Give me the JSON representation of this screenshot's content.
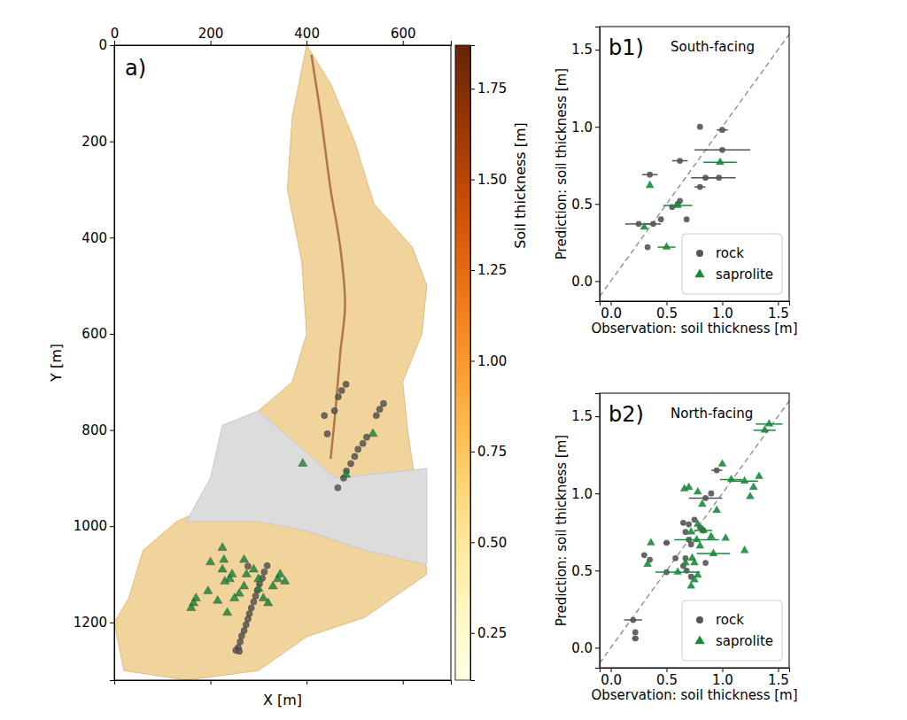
{
  "chart_data": [
    {
      "type": "scatter",
      "panel": "a)",
      "x_label": "X [m]",
      "y_label": "Y [m]",
      "xlim": [
        0,
        700
      ],
      "ylim": [
        0,
        1320
      ],
      "xticks": [
        0,
        200,
        400,
        600
      ],
      "yticks": [
        0,
        200,
        400,
        600,
        800,
        1000,
        1200
      ],
      "colorbar": {
        "label": "Soil thickness [m]",
        "range": [
          0.12,
          1.87
        ],
        "ticks": [
          0.25,
          {
            "value": 0.5,
            "label": "0.50"
          },
          0.75,
          {
            "value": 1,
            "label": "1.00"
          },
          1.25,
          {
            "value": 1.5,
            "label": "1.50"
          },
          1.75
        ]
      },
      "series": [
        {
          "name": "rock",
          "color": "#555555",
          "marker": "circle",
          "x": [
            482,
            473,
            466,
            458,
            437,
            443,
            560,
            552,
            545,
            525,
            517,
            507,
            500,
            492,
            483,
            477,
            465,
            318,
            312,
            308,
            302,
            298,
            294,
            290,
            285,
            281,
            278,
            274,
            270,
            265,
            262,
            258,
            253,
            260,
            278
          ],
          "values": [
            705,
            718,
            731,
            760,
            770,
            808,
            745,
            757,
            770,
            815,
            828,
            840,
            855,
            870,
            885,
            900,
            920,
            1082,
            1095,
            1108,
            1120,
            1133,
            1145,
            1157,
            1170,
            1182,
            1193,
            1205,
            1217,
            1228,
            1240,
            1252,
            1258,
            1260,
            1083
          ]
        },
        {
          "name": "saprolite",
          "color": "#1a8a3a",
          "marker": "triangle",
          "x": [
            392,
            538,
            482,
            225,
            200,
            228,
            245,
            240,
            230,
            270,
            275,
            270,
            260,
            250,
            235,
            290,
            300,
            300,
            310,
            320,
            330,
            340,
            345,
            355,
            170,
            165,
            160,
            195,
            215,
            225
          ],
          "values": [
            870,
            808,
            893,
            1045,
            1075,
            1070,
            1100,
            1110,
            1115,
            1070,
            1100,
            1125,
            1140,
            1150,
            1180,
            1090,
            1110,
            1130,
            1150,
            1160,
            1125,
            1110,
            1100,
            1115,
            1150,
            1160,
            1170,
            1135,
            1155,
            1090
          ]
        }
      ]
    },
    {
      "type": "scatter",
      "panel": "b1)",
      "title": "South-facing",
      "x_label": "Observation: soil thickness [m]",
      "y_label": "Prediction: soil thickness [m]",
      "xlim": [
        -0.1,
        1.6
      ],
      "ylim": [
        -0.13,
        1.65
      ],
      "xticks": [
        {
          "value": 0,
          "label": "0.0"
        },
        0.5,
        {
          "value": 1,
          "label": "1.0"
        },
        1.5
      ],
      "yticks": [
        {
          "value": 0,
          "label": "0.0"
        },
        0.5,
        {
          "value": 1,
          "label": "1.0"
        },
        1.5
      ],
      "legend": "lower right",
      "series": [
        {
          "name": "rock",
          "color": "#555555",
          "marker": "circle",
          "x": [
            0.8,
            1.0,
            0.35,
            0.62,
            1.0,
            0.85,
            0.97,
            0.8,
            0.62,
            0.6,
            0.55,
            0.68,
            0.45,
            0.38,
            0.25,
            0.33
          ],
          "values": [
            1.0,
            0.98,
            0.69,
            0.78,
            0.85,
            0.67,
            0.67,
            0.61,
            0.52,
            0.5,
            0.48,
            0.4,
            0.4,
            0.37,
            0.37,
            0.22
          ],
          "error": [
            null,
            0.05,
            0.07,
            0.07,
            0.25,
            0.13,
            0.15,
            0.05,
            null,
            null,
            null,
            null,
            null,
            0.07,
            0.12,
            null
          ]
        },
        {
          "name": "saprolite",
          "color": "#1a8a3a",
          "marker": "triangle",
          "x": [
            0.35,
            0.3,
            0.98,
            0.6,
            0.5
          ],
          "values": [
            0.62,
            0.35,
            0.77,
            0.49,
            0.22
          ],
          "error": [
            null,
            null,
            0.15,
            0.13,
            0.08
          ]
        }
      ]
    },
    {
      "type": "scatter",
      "panel": "b2)",
      "title": "North-facing",
      "x_label": "Observation: soil thickness [m]",
      "y_label": "Prediction: soil thickness [m]",
      "xlim": [
        -0.1,
        1.6
      ],
      "ylim": [
        -0.13,
        1.65
      ],
      "xticks": [
        {
          "value": 0,
          "label": "0.0"
        },
        0.5,
        {
          "value": 1,
          "label": "1.0"
        },
        1.5
      ],
      "yticks": [
        {
          "value": 0,
          "label": "0.0"
        },
        0.5,
        {
          "value": 1,
          "label": "1.0"
        },
        1.5
      ],
      "legend": "lower right",
      "series": [
        {
          "name": "rock",
          "color": "#555555",
          "marker": "circle",
          "x": [
            0.95,
            0.85,
            0.9,
            0.75,
            0.8,
            0.83,
            0.7,
            0.65,
            0.67,
            0.7,
            0.72,
            0.5,
            0.3,
            0.35,
            0.67,
            0.58,
            0.65,
            0.68,
            0.72,
            0.5,
            0.2,
            0.22,
            0.22,
            0.85
          ],
          "values": [
            1.15,
            0.97,
            1.0,
            0.83,
            0.78,
            0.76,
            0.8,
            0.81,
            0.75,
            0.7,
            0.67,
            0.68,
            0.6,
            0.57,
            0.58,
            0.58,
            0.53,
            0.5,
            0.46,
            0.49,
            0.18,
            0.1,
            0.06,
            0.55
          ],
          "error": [
            0.05,
            0.15,
            null,
            null,
            null,
            null,
            null,
            null,
            null,
            null,
            null,
            0.03,
            null,
            null,
            null,
            null,
            null,
            null,
            null,
            null,
            0.08,
            null,
            0.03,
            null
          ]
        },
        {
          "name": "saprolite",
          "color": "#1a8a3a",
          "marker": "triangle",
          "x": [
            1.42,
            1.38,
            1.33,
            1.0,
            1.08,
            1.2,
            1.28,
            1.25,
            0.7,
            0.66,
            0.78,
            0.82,
            0.95,
            0.78,
            0.83,
            0.72,
            0.77,
            0.9,
            1.03,
            0.92,
            1.2,
            0.8,
            0.73,
            0.75,
            0.67,
            0.6,
            0.75,
            0.72,
            0.36,
            0.33,
            0.78
          ],
          "values": [
            1.45,
            1.41,
            1.11,
            1.19,
            1.09,
            1.08,
            1.04,
            0.98,
            1.04,
            1.03,
            1.01,
            0.93,
            0.89,
            0.8,
            0.76,
            0.75,
            0.7,
            0.72,
            0.71,
            0.61,
            0.63,
            0.66,
            0.58,
            0.55,
            0.55,
            0.49,
            0.44,
            0.4,
            0.68,
            0.54,
            0.47
          ],
          "error": [
            0.12,
            0.1,
            null,
            null,
            0.1,
            0.12,
            null,
            null,
            null,
            null,
            null,
            null,
            null,
            null,
            0.08,
            null,
            0.2,
            null,
            null,
            0.15,
            null,
            null,
            null,
            null,
            null,
            0.2,
            null,
            null,
            null,
            null,
            null
          ]
        }
      ]
    }
  ]
}
